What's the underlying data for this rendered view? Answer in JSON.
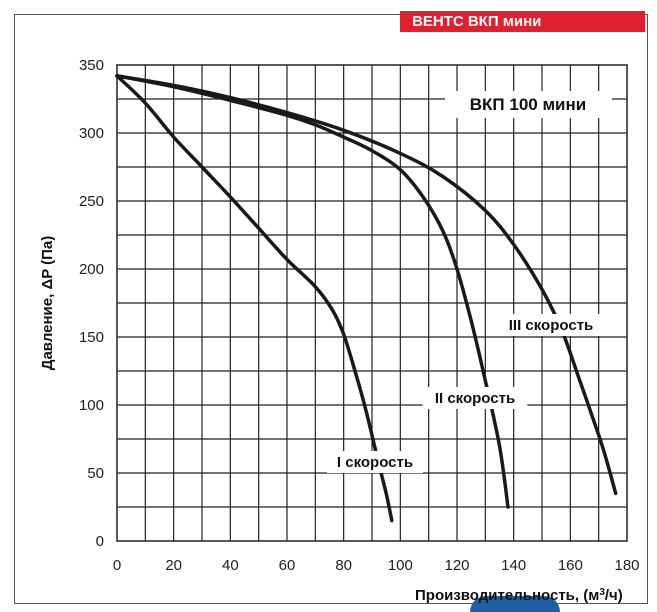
{
  "brand": {
    "label": "ВЕНТС ВКП мини",
    "color": "#e0202f"
  },
  "chart_data": {
    "type": "line",
    "title": "ВКП 100 мини",
    "xlabel": "Производительность, (м³/ч)",
    "ylabel": "Давление, ΔP (Па)",
    "xlim": [
      0,
      180
    ],
    "ylim": [
      0,
      350
    ],
    "xticks": [
      "0",
      "20",
      "40",
      "60",
      "80",
      "100",
      "120",
      "140",
      "160",
      "180"
    ],
    "yticks": [
      "0",
      "50",
      "100",
      "150",
      "200",
      "250",
      "300",
      "350"
    ],
    "grid": true,
    "series": [
      {
        "name": "I скорость",
        "x": [
          0,
          10,
          20,
          30,
          40,
          50,
          60,
          70,
          76,
          80,
          84,
          88,
          92,
          95,
          97
        ],
        "y": [
          342,
          322,
          297,
          275,
          253,
          230,
          207,
          187,
          170,
          152,
          125,
          95,
          60,
          35,
          15
        ]
      },
      {
        "name": "II скорость",
        "x": [
          0,
          20,
          40,
          60,
          70,
          80,
          90,
          100,
          108,
          115,
          120,
          125,
          130,
          135,
          138
        ],
        "y": [
          342,
          334,
          324,
          313,
          306,
          297,
          287,
          273,
          253,
          228,
          200,
          162,
          118,
          70,
          25
        ]
      },
      {
        "name": "III скорость",
        "x": [
          0,
          20,
          40,
          60,
          80,
          100,
          115,
          130,
          140,
          150,
          157,
          163,
          168,
          172,
          176
        ],
        "y": [
          342,
          335,
          326,
          315,
          302,
          285,
          268,
          243,
          218,
          185,
          155,
          120,
          90,
          65,
          35
        ]
      }
    ]
  }
}
